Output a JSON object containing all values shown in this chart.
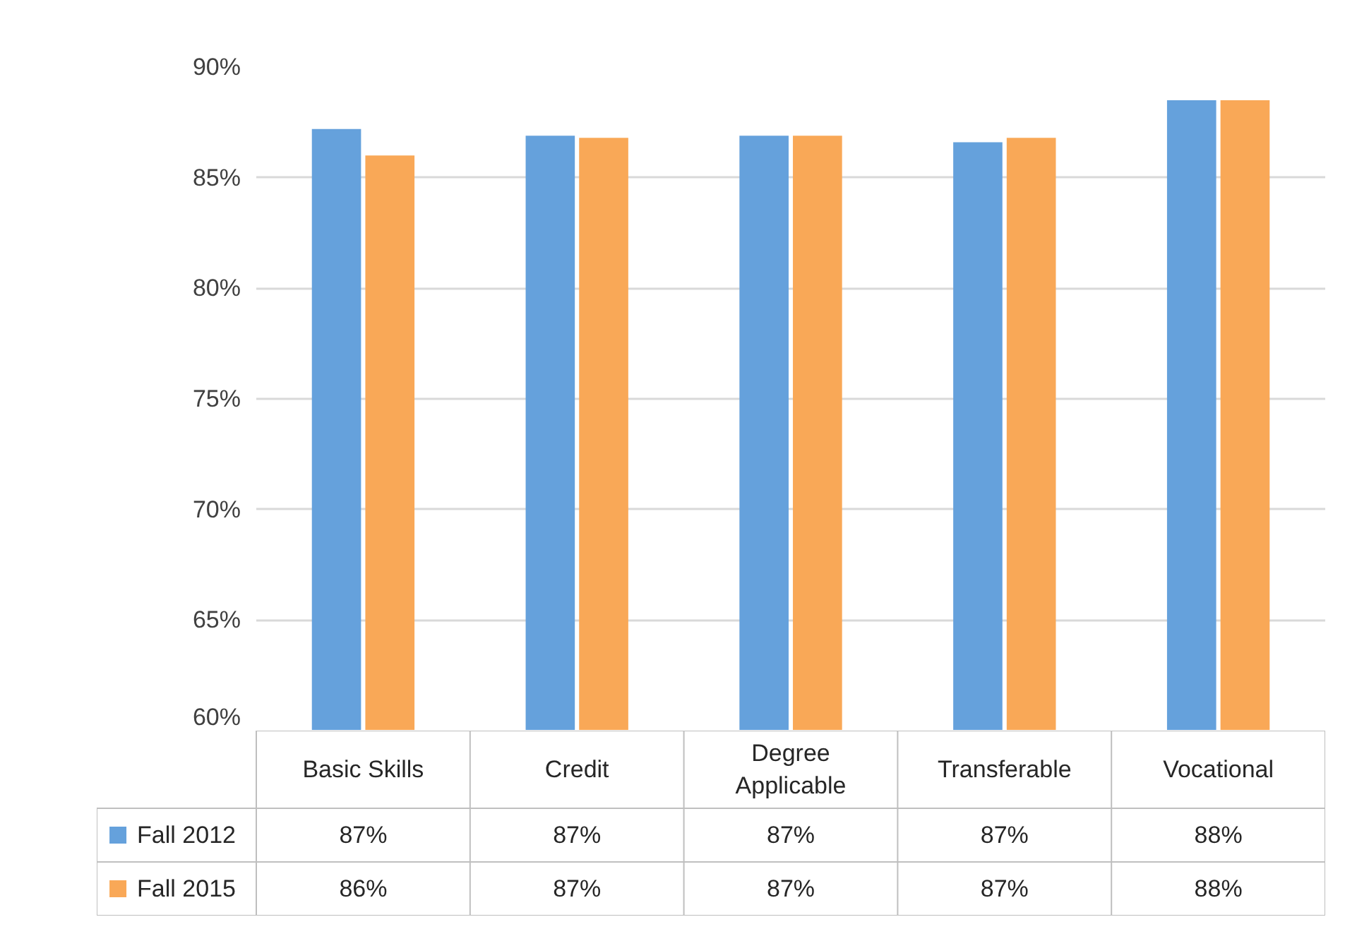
{
  "chart_data": {
    "type": "bar",
    "categories": [
      "Basic Skills",
      "Credit",
      "Degree Applicable",
      "Transferable",
      "Vocational"
    ],
    "series": [
      {
        "name": "Fall 2012",
        "color": "#65a1dc",
        "values": [
          87.2,
          86.9,
          86.9,
          86.6,
          88.5
        ],
        "value_labels": [
          "87%",
          "87%",
          "87%",
          "87%",
          "88%"
        ]
      },
      {
        "name": "Fall 2015",
        "color": "#f9a857",
        "values": [
          86.0,
          86.8,
          86.9,
          86.8,
          88.5
        ],
        "value_labels": [
          "86%",
          "87%",
          "87%",
          "87%",
          "88%"
        ]
      }
    ],
    "ylim": [
      60,
      90
    ],
    "yticks": [
      {
        "value": 60,
        "label": "60%"
      },
      {
        "value": 65,
        "label": "65%"
      },
      {
        "value": 70,
        "label": "70%"
      },
      {
        "value": 75,
        "label": "75%"
      },
      {
        "value": 80,
        "label": "80%"
      },
      {
        "value": 85,
        "label": "85%"
      },
      {
        "value": 90,
        "label": "90%"
      }
    ],
    "grid": "y",
    "legend": "bottom left"
  }
}
